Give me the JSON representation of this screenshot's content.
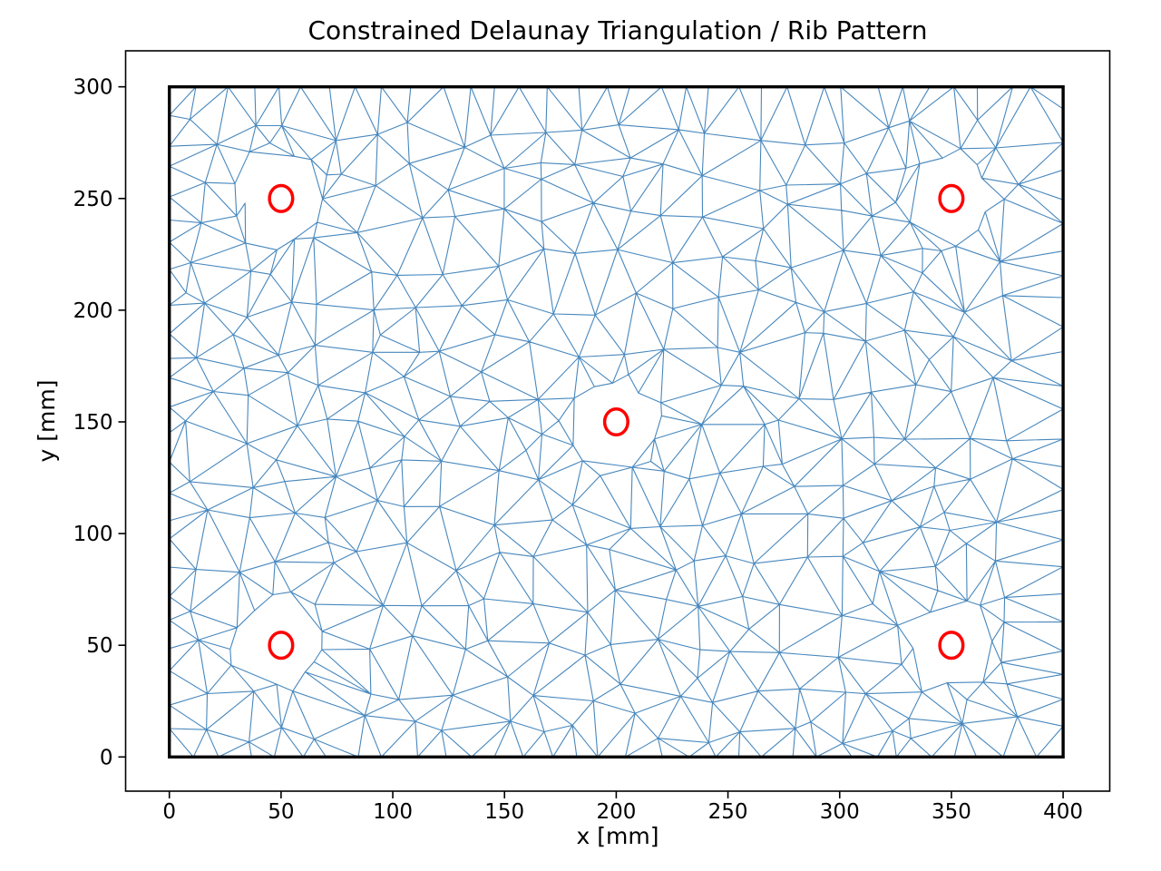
{
  "figure": {
    "title": "Constrained Delaunay Triangulation / Rib Pattern",
    "xlabel": "x [mm]",
    "ylabel": "y [mm]"
  },
  "chart_data": {
    "type": "triangulation",
    "title": "Constrained Delaunay Triangulation / Rib Pattern",
    "xlabel": "x [mm]",
    "ylabel": "y [mm]",
    "x_ticks": [
      0,
      50,
      100,
      150,
      200,
      250,
      300,
      350,
      400
    ],
    "y_ticks": [
      0,
      50,
      100,
      150,
      200,
      250,
      300
    ],
    "xlim": [
      0,
      400
    ],
    "ylim": [
      0,
      300
    ],
    "grid": false,
    "legend": null,
    "plate_outline_mm": {
      "x_min": 0,
      "y_min": 0,
      "x_max": 400,
      "y_max": 300
    },
    "hole_centers_mm": [
      [
        50,
        250
      ],
      [
        350,
        250
      ],
      [
        200,
        150
      ],
      [
        50,
        50
      ],
      [
        350,
        50
      ]
    ],
    "hole_marker_radius_mm": 5.2,
    "hole_clearance_radius_mm": 21,
    "colors": {
      "mesh_line": "#4787bd",
      "plate_outline": "#000000",
      "hole_marker": "#ff0000",
      "axes": "#000000",
      "text": "#000000",
      "background": "#ffffff"
    },
    "mesh_params": {
      "seed": 42,
      "boundary_spacing_mm": 12,
      "interior_spacing_mm": 19,
      "interior_jitter_mm": 14,
      "ring_point_count": 14,
      "ring_radius_jitter_mm": 5,
      "hole_keepout_mm": 29,
      "extra_random_points": 40
    }
  }
}
